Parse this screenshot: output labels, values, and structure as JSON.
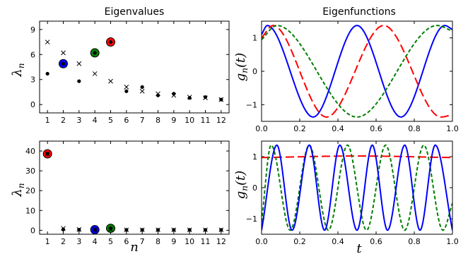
{
  "chart_data": [
    {
      "id": "eig_top",
      "type": "scatter",
      "title": "Eigenvalues",
      "xlabel": "",
      "ylabel_main": "λ",
      "ylabel_sub": "n",
      "xlim": [
        0.5,
        12.5
      ],
      "ylim": [
        -1,
        10
      ],
      "xticks": [
        1,
        2,
        3,
        4,
        5,
        6,
        7,
        8,
        9,
        10,
        11,
        12
      ],
      "yticks": [
        0,
        3,
        6,
        9
      ],
      "series": [
        {
          "marker": "dot",
          "x": [
            1,
            2,
            3,
            4,
            5,
            6,
            7,
            8,
            9,
            10,
            11,
            12
          ],
          "y": [
            3.7,
            4.9,
            2.8,
            6.2,
            7.5,
            1.6,
            2.1,
            1.1,
            1.3,
            0.8,
            0.9,
            0.6
          ]
        },
        {
          "marker": "cross",
          "x": [
            1,
            2,
            3,
            4,
            5,
            6,
            7,
            8,
            9,
            10,
            11,
            12
          ],
          "y": [
            7.5,
            6.2,
            4.9,
            3.7,
            2.8,
            2.1,
            1.6,
            1.3,
            1.1,
            0.9,
            0.8,
            0.6
          ]
        }
      ],
      "highlights": [
        {
          "x": 2,
          "y": 4.9,
          "color": "#0000ff"
        },
        {
          "x": 4,
          "y": 6.2,
          "color": "#008000"
        },
        {
          "x": 5,
          "y": 7.5,
          "color": "#ff0000"
        }
      ]
    },
    {
      "id": "eig_bottom",
      "type": "scatter",
      "title": "",
      "xlabel": "n",
      "ylabel_main": "λ",
      "ylabel_sub": "n",
      "xlim": [
        0.5,
        12.5
      ],
      "ylim": [
        -2,
        45
      ],
      "xticks": [
        1,
        2,
        3,
        4,
        5,
        6,
        7,
        8,
        9,
        10,
        11,
        12
      ],
      "yticks": [
        0,
        10,
        20,
        30,
        40
      ],
      "series": [
        {
          "marker": "dot",
          "x": [
            1,
            2,
            3,
            4,
            5,
            6,
            7,
            8,
            9,
            10,
            11,
            12
          ],
          "y": [
            38.6,
            0.4,
            0.3,
            0.3,
            1.0,
            0.2,
            0.2,
            0.2,
            0.2,
            0.2,
            0.2,
            0.2
          ]
        },
        {
          "marker": "cross",
          "x": [
            1,
            2,
            3,
            4,
            5,
            6,
            7,
            8,
            9,
            10,
            11,
            12
          ],
          "y": [
            38.6,
            1.0,
            0.4,
            0.3,
            0.3,
            0.2,
            0.2,
            0.2,
            0.2,
            0.2,
            0.2,
            0.2
          ]
        }
      ],
      "highlights": [
        {
          "x": 1,
          "y": 38.6,
          "color": "#ff0000"
        },
        {
          "x": 4,
          "y": 0.3,
          "color": "#0000ff"
        },
        {
          "x": 5,
          "y": 1.0,
          "color": "#008000"
        }
      ]
    },
    {
      "id": "fn_top",
      "type": "line",
      "title": "Eigenfunctions",
      "xlabel": "",
      "ylabel_main": "g",
      "ylabel_sub": "n",
      "ylabel_arg": "(t)",
      "xlim": [
        0,
        1
      ],
      "ylim": [
        -1.5,
        1.5
      ],
      "xticks": [
        0.0,
        0.2,
        0.4,
        0.6,
        0.8,
        1.0
      ],
      "xticklabels": [
        "0.0",
        "0.2",
        "0.4",
        "0.6",
        "0.8",
        "1.0"
      ],
      "yticks": [
        -1,
        0,
        1
      ],
      "yticklabels": [
        "−1",
        "0",
        "1"
      ],
      "series": [
        {
          "color": "#0000ff",
          "dash": "solid",
          "x": [
            0,
            0.03,
            0.27,
            0.5,
            0.73,
            0.96,
            1.0
          ],
          "y": [
            1.1,
            1.37,
            -1.37,
            1.37,
            -1.37,
            1.37,
            1.25
          ]
        },
        {
          "color": "#ff0000",
          "dash": "long-dash",
          "x": [
            0,
            0.06,
            0.34,
            0.64,
            0.94,
            1.0
          ],
          "y": [
            1.0,
            1.37,
            -1.37,
            1.37,
            -1.37,
            -1.3
          ]
        },
        {
          "color": "#008000",
          "dash": "short-dash",
          "x": [
            0,
            0.08,
            0.5,
            0.92,
            1.0
          ],
          "y": [
            0.95,
            1.37,
            -1.37,
            1.37,
            1.2
          ]
        }
      ]
    },
    {
      "id": "fn_bottom",
      "type": "line",
      "title": "",
      "xlabel": "t",
      "ylabel_main": "g",
      "ylabel_sub": "n",
      "ylabel_arg": "(t)",
      "xlim": [
        0,
        1
      ],
      "ylim": [
        -1.5,
        1.5
      ],
      "xticks": [
        0.0,
        0.2,
        0.4,
        0.6,
        0.8,
        1.0
      ],
      "xticklabels": [
        "0.0",
        "0.2",
        "0.4",
        "0.6",
        "0.8",
        "1.0"
      ],
      "yticks": [
        -1,
        0,
        1
      ],
      "yticklabels": [
        "−1",
        "0",
        "1"
      ],
      "series": [
        {
          "color": "#ff0000",
          "dash": "long-dash",
          "x": [
            0,
            0.5,
            1.0
          ],
          "y": [
            0.97,
            1.02,
            0.97
          ]
        },
        {
          "color": "#008000",
          "dash": "short-dash",
          "x": [
            0,
            0.05,
            0.15,
            0.25,
            0.35,
            0.45,
            0.55,
            0.65,
            0.75,
            0.85,
            0.95,
            1.0
          ],
          "y": [
            -1.1,
            1.37,
            -1.37,
            1.37,
            -1.37,
            1.37,
            -1.37,
            1.37,
            -1.37,
            1.37,
            -1.37,
            -0.5
          ]
        },
        {
          "color": "#0000ff",
          "dash": "solid",
          "x": [
            0,
            0.08,
            0.16,
            0.25,
            0.33,
            0.41,
            0.5,
            0.58,
            0.66,
            0.75,
            0.83,
            0.91,
            1.0
          ],
          "y": [
            -1.37,
            1.37,
            -1.37,
            1.37,
            -1.37,
            1.37,
            -1.37,
            1.37,
            -1.37,
            1.37,
            -1.37,
            1.37,
            -1.37
          ]
        }
      ]
    }
  ]
}
